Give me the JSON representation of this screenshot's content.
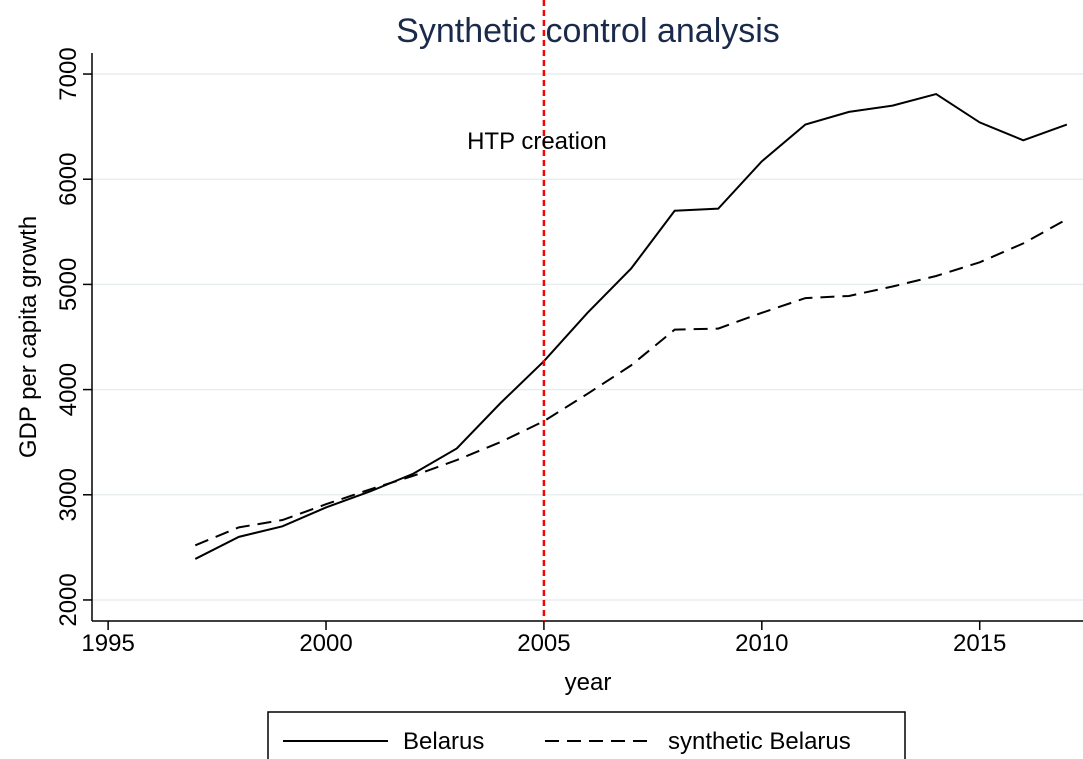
{
  "chart_data": {
    "type": "line",
    "title": "Synthetic control analysis",
    "xlabel": "year",
    "ylabel": "GDP per capita growth",
    "x": [
      1997,
      1998,
      1999,
      2000,
      2001,
      2002,
      2003,
      2004,
      2005,
      2006,
      2007,
      2008,
      2009,
      2010,
      2011,
      2012,
      2013,
      2014,
      2015,
      2016,
      2017
    ],
    "series": [
      {
        "name": "Belarus",
        "color": "#000000",
        "dash": "solid",
        "values": [
          2390,
          2600,
          2700,
          2880,
          3030,
          3200,
          3440,
          3870,
          4270,
          4730,
          5150,
          5700,
          5720,
          6170,
          6520,
          6640,
          6700,
          6810,
          6540,
          6370,
          6520
        ]
      },
      {
        "name": "synthetic Belarus",
        "color": "#000000",
        "dash": "dashed",
        "values": [
          2520,
          2690,
          2760,
          2910,
          3050,
          3180,
          3330,
          3500,
          3700,
          3960,
          4230,
          4570,
          4580,
          4730,
          4870,
          4890,
          4980,
          5080,
          5210,
          5390,
          5620
        ]
      }
    ],
    "vline": {
      "value": 2005,
      "color": "#ff0000"
    },
    "annotation": "HTP creation",
    "xlim": [
      1994.63,
      2017.37
    ],
    "xticks": [
      1995,
      2000,
      2005,
      2010,
      2015
    ],
    "ylim": [
      1800,
      7200
    ],
    "yticks": [
      2000,
      3000,
      4000,
      5000,
      6000,
      7000
    ],
    "grid": true,
    "legend": "bottom"
  }
}
